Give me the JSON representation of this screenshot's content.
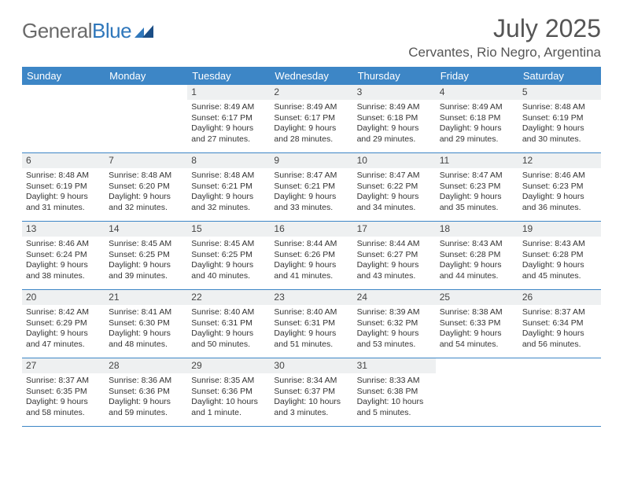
{
  "brand": {
    "name_a": "General",
    "name_b": "Blue"
  },
  "title": "July 2025",
  "location": "Cervantes, Rio Negro, Argentina",
  "colors": {
    "header_bg": "#3d86c6",
    "header_text": "#ffffff",
    "daynum_bg": "#eef0f1",
    "rule": "#3d86c6",
    "body_text": "#333333",
    "title_text": "#555555"
  },
  "days_of_week": [
    "Sunday",
    "Monday",
    "Tuesday",
    "Wednesday",
    "Thursday",
    "Friday",
    "Saturday"
  ],
  "first_weekday_index": 2,
  "days": [
    {
      "n": 1,
      "sunrise": "8:49 AM",
      "sunset": "6:17 PM",
      "daylight": "9 hours and 27 minutes."
    },
    {
      "n": 2,
      "sunrise": "8:49 AM",
      "sunset": "6:17 PM",
      "daylight": "9 hours and 28 minutes."
    },
    {
      "n": 3,
      "sunrise": "8:49 AM",
      "sunset": "6:18 PM",
      "daylight": "9 hours and 29 minutes."
    },
    {
      "n": 4,
      "sunrise": "8:49 AM",
      "sunset": "6:18 PM",
      "daylight": "9 hours and 29 minutes."
    },
    {
      "n": 5,
      "sunrise": "8:48 AM",
      "sunset": "6:19 PM",
      "daylight": "9 hours and 30 minutes."
    },
    {
      "n": 6,
      "sunrise": "8:48 AM",
      "sunset": "6:19 PM",
      "daylight": "9 hours and 31 minutes."
    },
    {
      "n": 7,
      "sunrise": "8:48 AM",
      "sunset": "6:20 PM",
      "daylight": "9 hours and 32 minutes."
    },
    {
      "n": 8,
      "sunrise": "8:48 AM",
      "sunset": "6:21 PM",
      "daylight": "9 hours and 32 minutes."
    },
    {
      "n": 9,
      "sunrise": "8:47 AM",
      "sunset": "6:21 PM",
      "daylight": "9 hours and 33 minutes."
    },
    {
      "n": 10,
      "sunrise": "8:47 AM",
      "sunset": "6:22 PM",
      "daylight": "9 hours and 34 minutes."
    },
    {
      "n": 11,
      "sunrise": "8:47 AM",
      "sunset": "6:23 PM",
      "daylight": "9 hours and 35 minutes."
    },
    {
      "n": 12,
      "sunrise": "8:46 AM",
      "sunset": "6:23 PM",
      "daylight": "9 hours and 36 minutes."
    },
    {
      "n": 13,
      "sunrise": "8:46 AM",
      "sunset": "6:24 PM",
      "daylight": "9 hours and 38 minutes."
    },
    {
      "n": 14,
      "sunrise": "8:45 AM",
      "sunset": "6:25 PM",
      "daylight": "9 hours and 39 minutes."
    },
    {
      "n": 15,
      "sunrise": "8:45 AM",
      "sunset": "6:25 PM",
      "daylight": "9 hours and 40 minutes."
    },
    {
      "n": 16,
      "sunrise": "8:44 AM",
      "sunset": "6:26 PM",
      "daylight": "9 hours and 41 minutes."
    },
    {
      "n": 17,
      "sunrise": "8:44 AM",
      "sunset": "6:27 PM",
      "daylight": "9 hours and 43 minutes."
    },
    {
      "n": 18,
      "sunrise": "8:43 AM",
      "sunset": "6:28 PM",
      "daylight": "9 hours and 44 minutes."
    },
    {
      "n": 19,
      "sunrise": "8:43 AM",
      "sunset": "6:28 PM",
      "daylight": "9 hours and 45 minutes."
    },
    {
      "n": 20,
      "sunrise": "8:42 AM",
      "sunset": "6:29 PM",
      "daylight": "9 hours and 47 minutes."
    },
    {
      "n": 21,
      "sunrise": "8:41 AM",
      "sunset": "6:30 PM",
      "daylight": "9 hours and 48 minutes."
    },
    {
      "n": 22,
      "sunrise": "8:40 AM",
      "sunset": "6:31 PM",
      "daylight": "9 hours and 50 minutes."
    },
    {
      "n": 23,
      "sunrise": "8:40 AM",
      "sunset": "6:31 PM",
      "daylight": "9 hours and 51 minutes."
    },
    {
      "n": 24,
      "sunrise": "8:39 AM",
      "sunset": "6:32 PM",
      "daylight": "9 hours and 53 minutes."
    },
    {
      "n": 25,
      "sunrise": "8:38 AM",
      "sunset": "6:33 PM",
      "daylight": "9 hours and 54 minutes."
    },
    {
      "n": 26,
      "sunrise": "8:37 AM",
      "sunset": "6:34 PM",
      "daylight": "9 hours and 56 minutes."
    },
    {
      "n": 27,
      "sunrise": "8:37 AM",
      "sunset": "6:35 PM",
      "daylight": "9 hours and 58 minutes."
    },
    {
      "n": 28,
      "sunrise": "8:36 AM",
      "sunset": "6:36 PM",
      "daylight": "9 hours and 59 minutes."
    },
    {
      "n": 29,
      "sunrise": "8:35 AM",
      "sunset": "6:36 PM",
      "daylight": "10 hours and 1 minute."
    },
    {
      "n": 30,
      "sunrise": "8:34 AM",
      "sunset": "6:37 PM",
      "daylight": "10 hours and 3 minutes."
    },
    {
      "n": 31,
      "sunrise": "8:33 AM",
      "sunset": "6:38 PM",
      "daylight": "10 hours and 5 minutes."
    }
  ],
  "labels": {
    "sunrise": "Sunrise:",
    "sunset": "Sunset:",
    "daylight": "Daylight:"
  }
}
